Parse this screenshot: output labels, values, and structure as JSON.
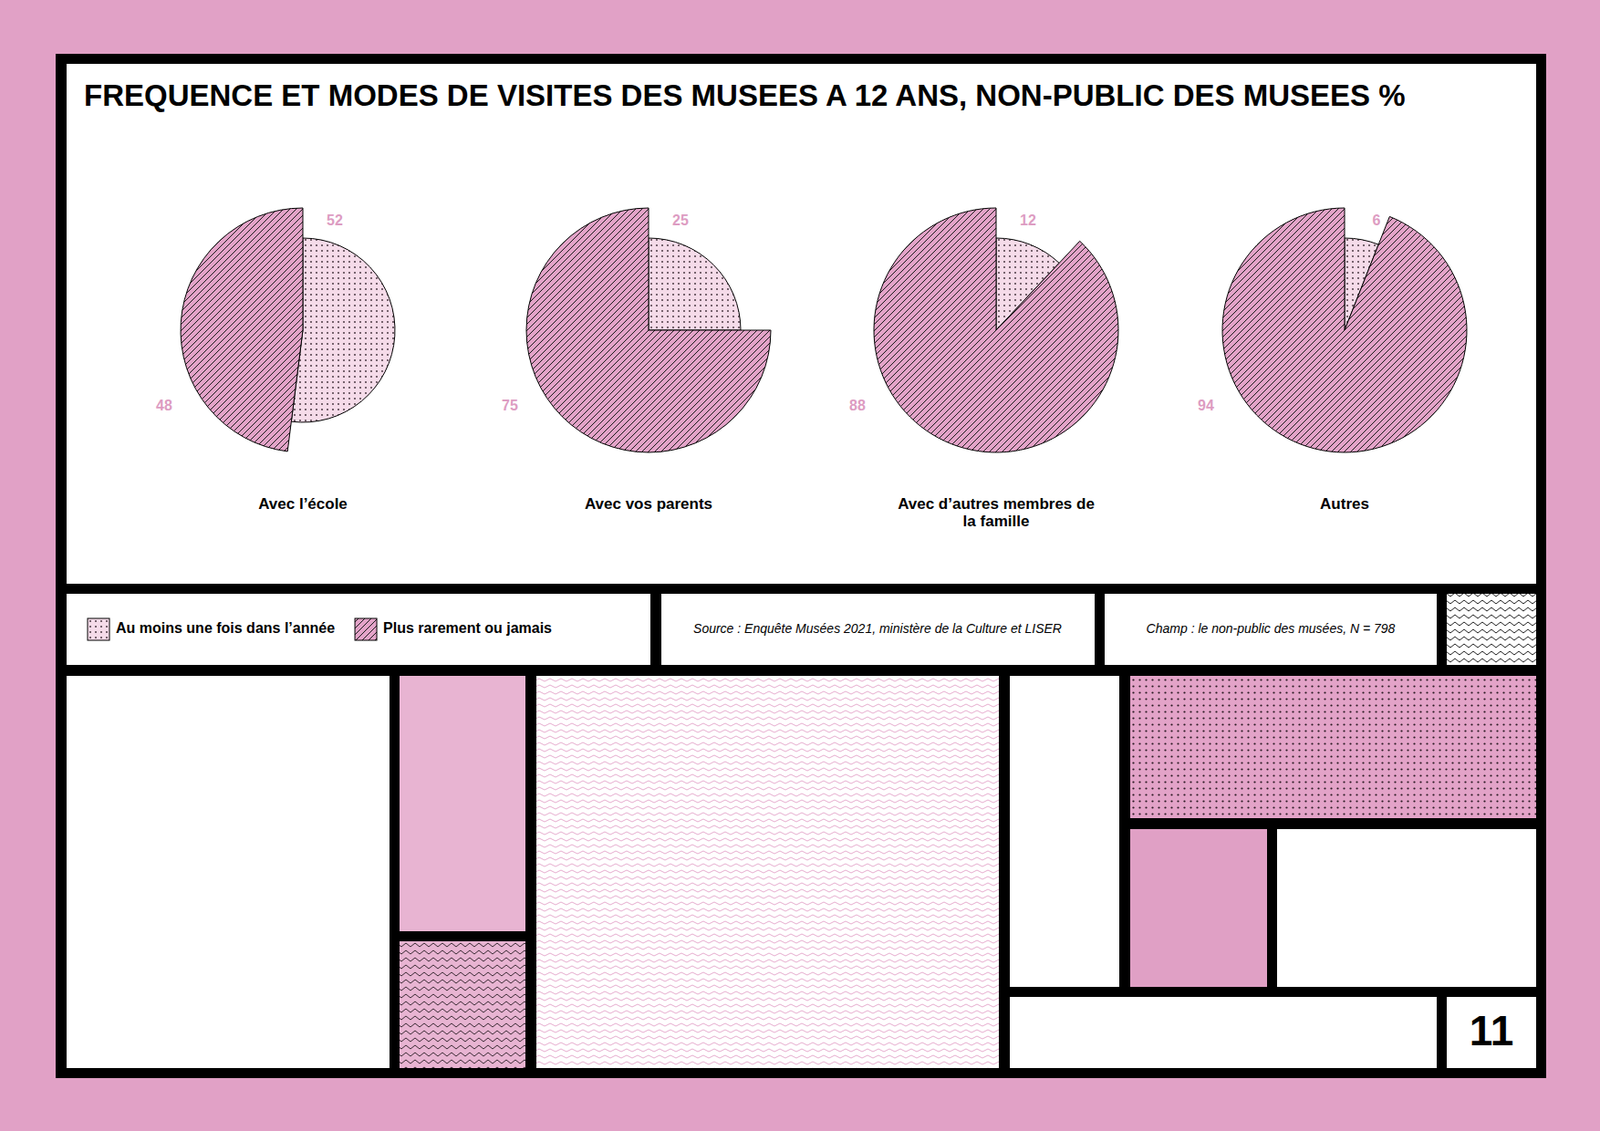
{
  "chart_data": {
    "type": "pie",
    "title": "FREQUENCE ET MODES DE VISITES DES MUSEES A 12 ANS, NON-PUBLIC DES MUSEES %",
    "categories": [
      "Avec l’école",
      "Avec vos parents",
      "Avec d’autres membres de la famille",
      "Autres"
    ],
    "series": [
      {
        "name": "Au moins une fois dans l’année",
        "color": "#f5dbe9",
        "values": [
          52,
          25,
          12,
          6
        ]
      },
      {
        "name": "Plus rarement ou jamais",
        "color": "#e3a3c8",
        "values": [
          48,
          75,
          88,
          94
        ]
      }
    ],
    "data_labels": true,
    "legend": "bottom-left"
  },
  "source": "Source : Enquête Musées 2021, ministère de la Culture et LISER",
  "scope": "Champ : le non-public des musées, N = 798",
  "page_number": 11
}
